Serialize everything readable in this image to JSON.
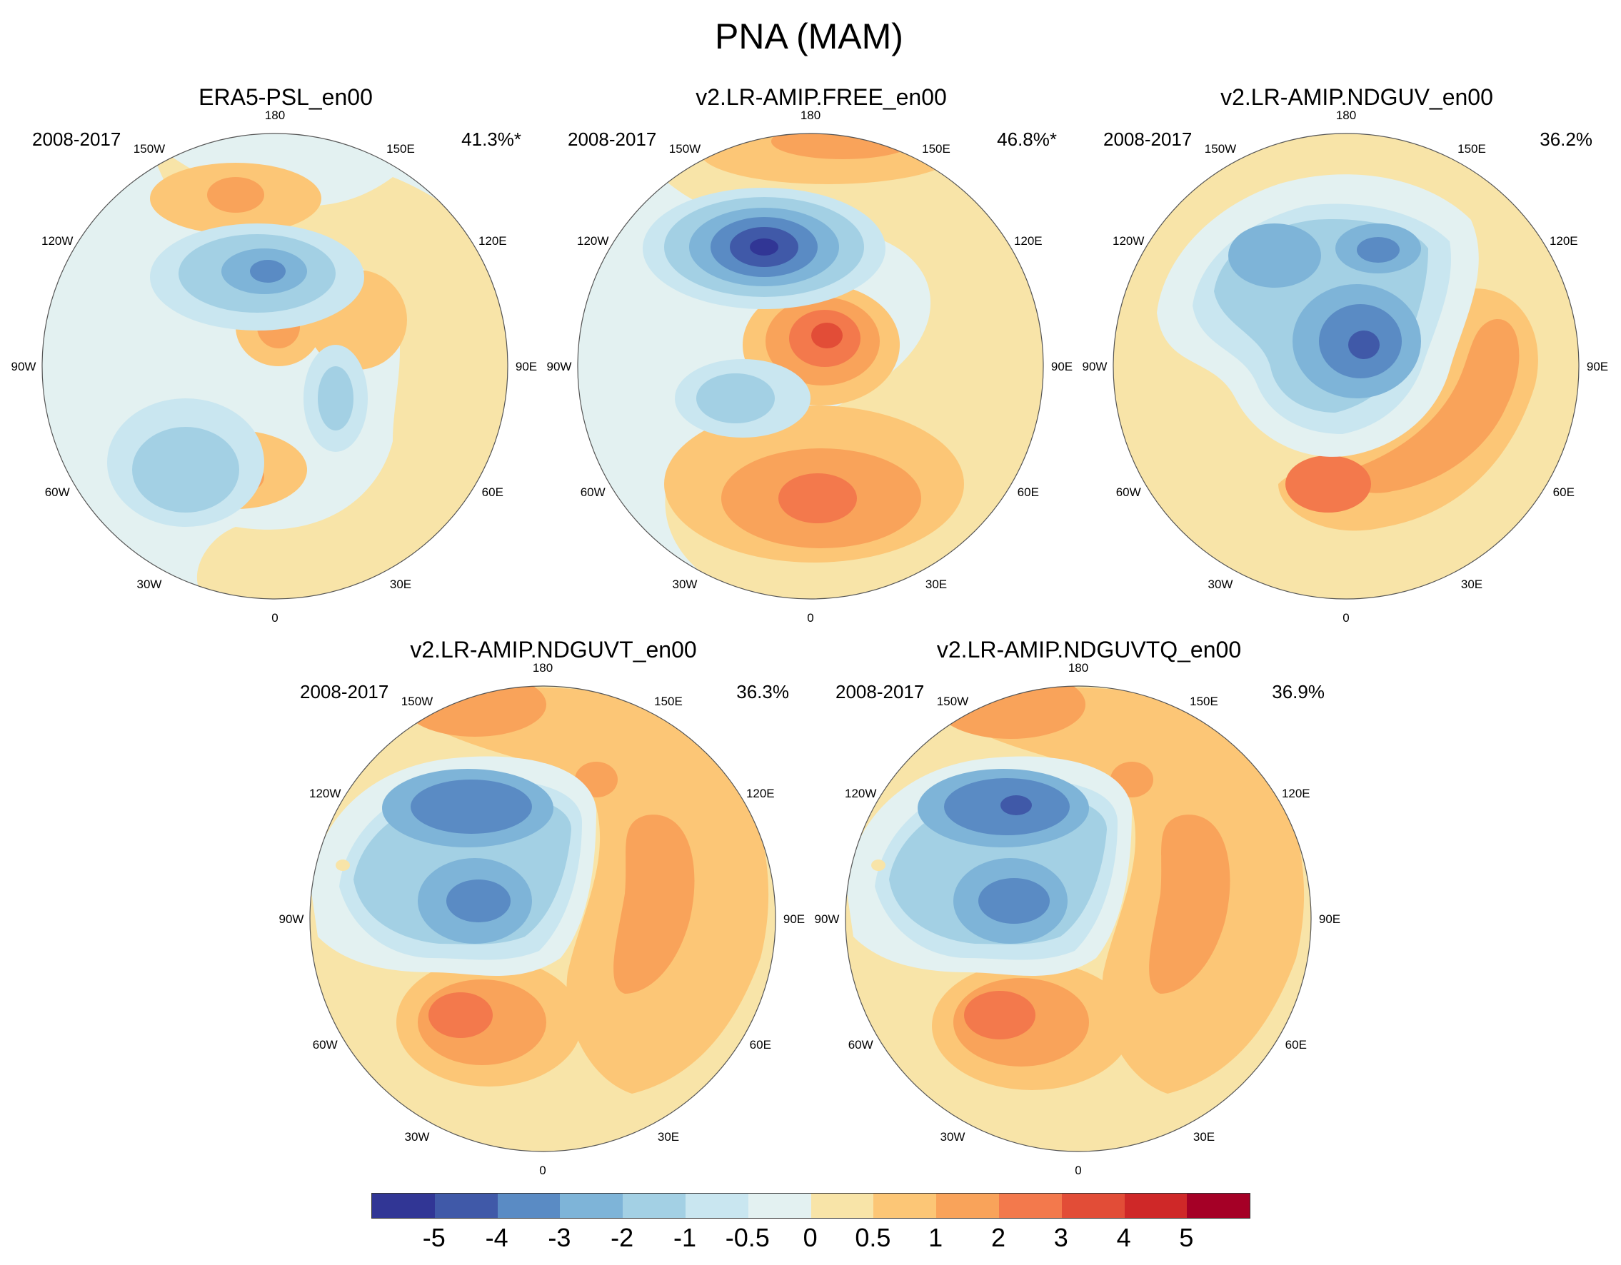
{
  "title": "PNA (MAM)",
  "palette": [
    "#313695",
    "#4059a8",
    "#5a8bc4",
    "#7eb4d8",
    "#a3d0e4",
    "#c9e6f0",
    "#e3f1f1",
    "#f8e4a8",
    "#fcc676",
    "#f9a35a",
    "#f3794c",
    "#e24d37",
    "#cf2828",
    "#a50026"
  ],
  "colorbar_labels": [
    "-5",
    "-4",
    "-3",
    "-2",
    "-1",
    "-0.5",
    "0",
    "0.5",
    "1",
    "2",
    "3",
    "4",
    "5"
  ],
  "lon_labels": [
    "180",
    "150E",
    "120E",
    "90E",
    "60E",
    "30E",
    "0",
    "30W",
    "60W",
    "90W",
    "120W",
    "150W"
  ],
  "panels": [
    {
      "name": "ERA5-PSL_en00",
      "period": "2008-2017",
      "pct": "41.3%*"
    },
    {
      "name": "v2.LR-AMIP.FREE_en00",
      "period": "2008-2017",
      "pct": "46.8%*"
    },
    {
      "name": "v2.LR-AMIP.NDGUV_en00",
      "period": "2008-2017",
      "pct": "36.2%"
    },
    {
      "name": "v2.LR-AMIP.NDGUVT_en00",
      "period": "2008-2017",
      "pct": "36.3%"
    },
    {
      "name": "v2.LR-AMIP.NDGUVTQ_en00",
      "period": "2008-2017",
      "pct": "36.9%"
    }
  ]
}
